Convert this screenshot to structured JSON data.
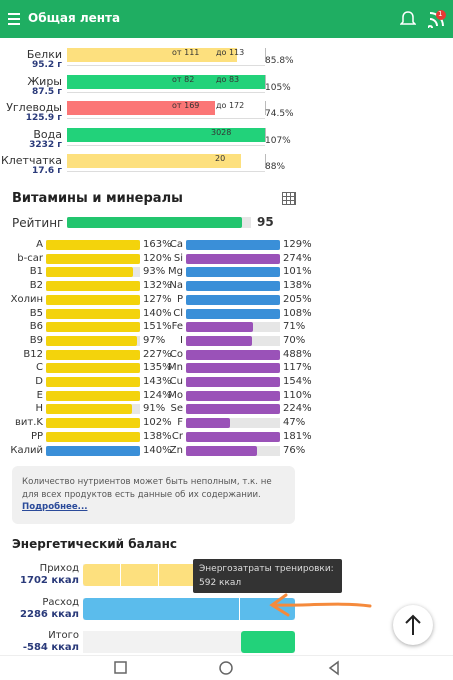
{
  "header": {
    "title": "Общая лента",
    "badge": "1"
  },
  "macros": [
    {
      "name": "Белки",
      "amount": "95.2 г",
      "min": "от 111",
      "max": "до 113",
      "percent": "85.8%",
      "color": "#fde07e"
    },
    {
      "name": "Жиры",
      "amount": "87.5 г",
      "min": "от 82",
      "max": "до 83",
      "percent": "105%",
      "color": "#22d27a"
    },
    {
      "name": "Углеводы",
      "amount": "125.9 г",
      "min": "от 169",
      "max": "до 172",
      "percent": "74.5%",
      "color": "#fb7676"
    },
    {
      "name": "Вода",
      "amount": "3232 г",
      "target": "3028",
      "percent": "107%",
      "color": "#22d27a"
    },
    {
      "name": "Клетчатка",
      "amount": "17.6 г",
      "target": "20",
      "percent": "88%",
      "color": "#fde07e"
    }
  ],
  "vitamins": {
    "title": "Витамины и минералы",
    "rating_label": "Рейтинг",
    "rating": "95",
    "left": [
      [
        "A",
        "163%",
        "#f3d30c"
      ],
      [
        "b-car",
        "120%",
        "#f3d30c"
      ],
      [
        "B1",
        "93%",
        "#f3d30c"
      ],
      [
        "B2",
        "132%",
        "#f3d30c"
      ],
      [
        "Холин",
        "127%",
        "#f3d30c"
      ],
      [
        "B5",
        "140%",
        "#f3d30c"
      ],
      [
        "B6",
        "151%",
        "#f3d30c"
      ],
      [
        "B9",
        "97%",
        "#f3d30c"
      ],
      [
        "B12",
        "227%",
        "#f3d30c"
      ],
      [
        "C",
        "135%",
        "#f3d30c"
      ],
      [
        "D",
        "143%",
        "#f3d30c"
      ],
      [
        "E",
        "124%",
        "#f3d30c"
      ],
      [
        "H",
        "91%",
        "#f3d30c"
      ],
      [
        "вит.K",
        "102%",
        "#f3d30c"
      ],
      [
        "PP",
        "138%",
        "#f3d30c"
      ],
      [
        "Калий",
        "140%",
        "#3a8fd8"
      ]
    ],
    "right": [
      [
        "Ca",
        "129%",
        "#3a8fd8"
      ],
      [
        "Si",
        "274%",
        "#9a52b8"
      ],
      [
        "Mg",
        "101%",
        "#3a8fd8"
      ],
      [
        "Na",
        "138%",
        "#3a8fd8"
      ],
      [
        "P",
        "205%",
        "#3a8fd8"
      ],
      [
        "Cl",
        "108%",
        "#3a8fd8"
      ],
      [
        "Fe",
        "71%",
        "#9a52b8"
      ],
      [
        "I",
        "70%",
        "#9a52b8"
      ],
      [
        "Co",
        "488%",
        "#9a52b8"
      ],
      [
        "Mn",
        "117%",
        "#9a52b8"
      ],
      [
        "Cu",
        "154%",
        "#9a52b8"
      ],
      [
        "Mo",
        "110%",
        "#9a52b8"
      ],
      [
        "Se",
        "224%",
        "#9a52b8"
      ],
      [
        "F",
        "47%",
        "#9a52b8"
      ],
      [
        "Cr",
        "181%",
        "#9a52b8"
      ],
      [
        "Zn",
        "76%",
        "#9a52b8"
      ]
    ]
  },
  "note": {
    "text": "Количество нутриентов может быть неполным, т.к. не для всех продуктов есть данные об их содержании.",
    "link": "Подробнее..."
  },
  "energy": {
    "title": "Энергетический баланс",
    "rows": [
      {
        "label": "Приход",
        "value": "1702 ккал",
        "color": "#fde07e"
      },
      {
        "label": "Расход",
        "value": "2286 ккал",
        "color": "#5bbcec"
      },
      {
        "label": "Итого",
        "value": "-584 ккал",
        "color": "#22d27a"
      }
    ],
    "tooltip": {
      "title": "Энергозатраты тренировки:",
      "value": "592 ккал"
    }
  }
}
